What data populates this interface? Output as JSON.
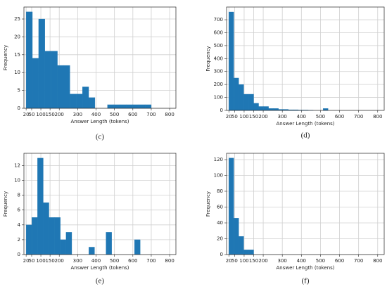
{
  "chart_data": [
    {
      "type": "histogram",
      "caption": "(c)",
      "xlabel": "Answer Length (tokens)",
      "ylabel": "Frequency",
      "color": "#1f77b4",
      "grid": true,
      "bins": [
        20,
        54,
        88,
        122,
        156,
        190,
        224,
        258,
        292,
        326,
        360,
        394,
        428,
        462,
        496,
        530,
        564,
        598,
        632,
        666,
        700
      ],
      "values": [
        27,
        14,
        25,
        16,
        16,
        12,
        12,
        4,
        4,
        6,
        3,
        0,
        0,
        1,
        1,
        1,
        1,
        1,
        1,
        1
      ],
      "xlim": [
        8,
        834
      ],
      "ylim": [
        0,
        28.35
      ],
      "xticks": [
        20,
        50,
        100,
        150,
        200,
        300,
        400,
        500,
        600,
        700,
        800
      ],
      "yticks": [
        0,
        5,
        10,
        15,
        20,
        25
      ]
    },
    {
      "type": "histogram",
      "caption": "(d)",
      "xlabel": "Answer Length (tokens)",
      "ylabel": "Frequency",
      "color": "#1f77b4",
      "grid": true,
      "bins": [
        20,
        46,
        72,
        98,
        124,
        150,
        176,
        202,
        228,
        254,
        280,
        306,
        332,
        358,
        384,
        410,
        436,
        462,
        488,
        514,
        540
      ],
      "values": [
        760,
        250,
        200,
        125,
        125,
        55,
        30,
        30,
        15,
        15,
        8,
        8,
        5,
        5,
        3,
        3,
        2,
        0,
        0,
        15
      ],
      "xlim": [
        8,
        834
      ],
      "ylim": [
        0,
        798
      ],
      "xticks": [
        20,
        50,
        100,
        150,
        200,
        300,
        400,
        500,
        600,
        700,
        800
      ],
      "yticks": [
        0,
        100,
        200,
        300,
        400,
        500,
        600,
        700
      ]
    },
    {
      "type": "histogram",
      "caption": "(e)",
      "xlabel": "Answer Length (tokens)",
      "ylabel": "Frequency",
      "color": "#1f77b4",
      "grid": true,
      "bins": [
        20,
        51,
        82,
        113,
        144,
        175,
        206,
        237,
        268,
        299,
        330,
        361,
        392,
        423,
        454,
        485,
        516,
        547,
        578,
        609,
        640
      ],
      "values": [
        4,
        5,
        13,
        7,
        5,
        5,
        2,
        3,
        0,
        0,
        0,
        1,
        0,
        0,
        3,
        0,
        0,
        0,
        0,
        2
      ],
      "xlim": [
        8,
        834
      ],
      "ylim": [
        0,
        13.65
      ],
      "xticks": [
        20,
        50,
        100,
        150,
        200,
        300,
        400,
        500,
        600,
        700,
        800
      ],
      "yticks": [
        0,
        2,
        4,
        6,
        8,
        10,
        12
      ]
    },
    {
      "type": "histogram",
      "caption": "(f)",
      "xlabel": "Answer Length (tokens)",
      "ylabel": "Frequency",
      "color": "#1f77b4",
      "grid": true,
      "bins": [
        20,
        46,
        72,
        98,
        124,
        150
      ],
      "values": [
        122,
        46,
        23,
        6,
        6
      ],
      "xlim": [
        8,
        834
      ],
      "ylim": [
        0,
        128
      ],
      "xticks": [
        20,
        50,
        100,
        150,
        200,
        300,
        400,
        500,
        600,
        700,
        800
      ],
      "yticks": [
        0,
        20,
        40,
        60,
        80,
        100,
        120
      ]
    }
  ]
}
